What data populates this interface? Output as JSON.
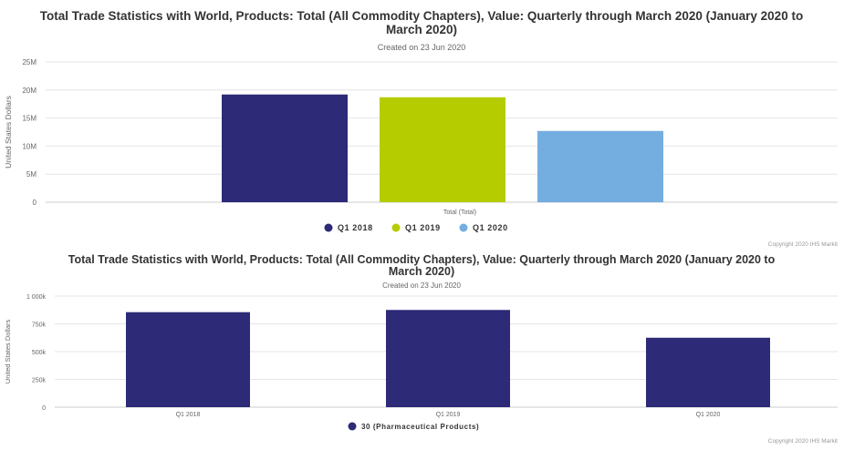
{
  "colors": {
    "navy": "#2d2a77",
    "lime": "#b5cc00",
    "lightblue": "#74ade0",
    "grid": "#e6e6e6",
    "text": "#333333"
  },
  "chart_data": [
    {
      "type": "bar",
      "title_line1": "Total Trade Statistics with World, Products: Total (All Commodity Chapters), Value: Quarterly through March 2020 (January 2020 to",
      "title_line2": "March 2020)",
      "subtitle": "Created on 23 Jun 2020",
      "ylabel": "United States Dollars",
      "categories": [
        "Total (Total)"
      ],
      "ylim": [
        0,
        25000000
      ],
      "yticks": [
        "0",
        "5M",
        "10M",
        "15M",
        "20M",
        "25M"
      ],
      "series": [
        {
          "name": "Q1 2018",
          "color": "#2d2a77",
          "values": [
            19200000
          ]
        },
        {
          "name": "Q1 2019",
          "color": "#b5cc00",
          "values": [
            18700000
          ]
        },
        {
          "name": "Q1 2020",
          "color": "#74ade0",
          "values": [
            12700000
          ]
        }
      ],
      "legend_position": "bottom-center",
      "grid": true,
      "credit": "Copyright 2020 IHS Markit"
    },
    {
      "type": "bar",
      "title_line1": "Total Trade Statistics with World, Products: Total (All Commodity Chapters), Value: Quarterly through March 2020 (January 2020 to",
      "title_line2": "March 2020)",
      "subtitle": "Created on 23 Jun 2020",
      "ylabel": "United States Dollars",
      "categories": [
        "Q1 2018",
        "Q1 2019",
        "Q1 2020"
      ],
      "ylim": [
        0,
        1000000
      ],
      "yticks": [
        "0",
        "250k",
        "500k",
        "750k",
        "1 000k"
      ],
      "series": [
        {
          "name": "30 (Pharmaceutical Products)",
          "color": "#2d2a77",
          "values": [
            855000,
            875000,
            625000
          ]
        }
      ],
      "legend_position": "bottom-center",
      "grid": true,
      "credit": "Copyright 2020 IHS Markit"
    }
  ]
}
